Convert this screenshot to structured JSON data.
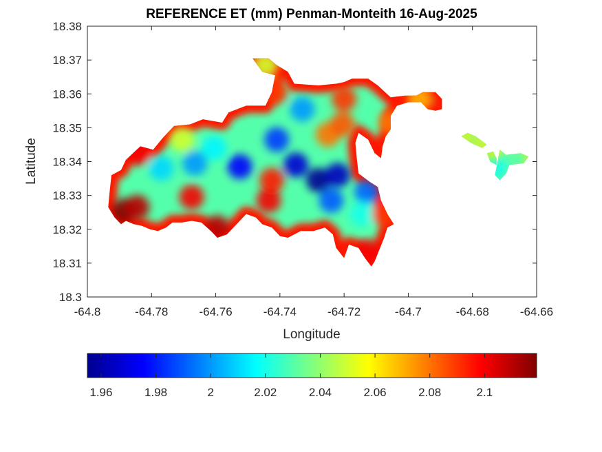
{
  "chart_data": {
    "type": "heatmap",
    "title": "REFERENCE ET (mm) Penman-Monteith 16-Aug-2025",
    "xlabel": "Longitude",
    "ylabel": "Latitude",
    "xlim": [
      -64.8,
      -64.66
    ],
    "ylim": [
      18.3,
      18.38
    ],
    "xticks": [
      -64.8,
      -64.78,
      -64.76,
      -64.74,
      -64.72,
      -64.7,
      -64.68,
      -64.66
    ],
    "xtick_labels": [
      "-64.8",
      "-64.78",
      "-64.76",
      "-64.74",
      "-64.72",
      "-64.7",
      "-64.68",
      "-64.66"
    ],
    "yticks": [
      18.3,
      18.31,
      18.32,
      18.33,
      18.34,
      18.35,
      18.36,
      18.37,
      18.38
    ],
    "ytick_labels": [
      "18.3",
      "18.31",
      "18.32",
      "18.33",
      "18.34",
      "18.35",
      "18.36",
      "18.37",
      "18.38"
    ],
    "colormap": "jet",
    "colorbar": {
      "orientation": "horizontal",
      "location": "below",
      "range": [
        1.955,
        2.119
      ],
      "ticks": [
        1.96,
        1.98,
        2.0,
        2.02,
        2.04,
        2.06,
        2.08,
        2.1
      ],
      "tick_labels": [
        "1.96",
        "1.98",
        "2",
        "2.02",
        "2.04",
        "2.06",
        "2.08",
        "2.1"
      ]
    },
    "grid": false,
    "region_outline": [
      [
        -64.7915,
        18.3235
      ],
      [
        -64.7935,
        18.3265
      ],
      [
        -64.793,
        18.3315
      ],
      [
        -64.7925,
        18.336
      ],
      [
        -64.7895,
        18.3375
      ],
      [
        -64.788,
        18.3405
      ],
      [
        -64.7835,
        18.3445
      ],
      [
        -64.7795,
        18.3435
      ],
      [
        -64.7765,
        18.347
      ],
      [
        -64.773,
        18.3505
      ],
      [
        -64.768,
        18.351
      ],
      [
        -64.764,
        18.3525
      ],
      [
        -64.758,
        18.3515
      ],
      [
        -64.756,
        18.3545
      ],
      [
        -64.7505,
        18.3565
      ],
      [
        -64.7445,
        18.3565
      ],
      [
        -64.7425,
        18.3605
      ],
      [
        -64.7415,
        18.3655
      ],
      [
        -64.7455,
        18.3665
      ],
      [
        -64.7485,
        18.3705
      ],
      [
        -64.7435,
        18.3705
      ],
      [
        -64.741,
        18.3685
      ],
      [
        -64.7375,
        18.3665
      ],
      [
        -64.7355,
        18.363
      ],
      [
        -64.728,
        18.3625
      ],
      [
        -64.7225,
        18.363
      ],
      [
        -64.72,
        18.3635
      ],
      [
        -64.7175,
        18.3645
      ],
      [
        -64.7125,
        18.3645
      ],
      [
        -64.7095,
        18.3625
      ],
      [
        -64.7055,
        18.359
      ],
      [
        -64.701,
        18.3595
      ],
      [
        -64.6975,
        18.3595
      ],
      [
        -64.6955,
        18.3605
      ],
      [
        -64.6915,
        18.3605
      ],
      [
        -64.6895,
        18.3585
      ],
      [
        -64.6895,
        18.3555
      ],
      [
        -64.6915,
        18.355
      ],
      [
        -64.694,
        18.3555
      ],
      [
        -64.696,
        18.3575
      ],
      [
        -64.7,
        18.3575
      ],
      [
        -64.7035,
        18.3565
      ],
      [
        -64.7055,
        18.3535
      ],
      [
        -64.7055,
        18.3495
      ],
      [
        -64.707,
        18.3475
      ],
      [
        -64.708,
        18.3445
      ],
      [
        -64.7085,
        18.341
      ],
      [
        -64.7105,
        18.3425
      ],
      [
        -64.7125,
        18.3465
      ],
      [
        -64.7155,
        18.3485
      ],
      [
        -64.7165,
        18.3455
      ],
      [
        -64.716,
        18.3405
      ],
      [
        -64.7155,
        18.3365
      ],
      [
        -64.712,
        18.334
      ],
      [
        -64.7095,
        18.3325
      ],
      [
        -64.7085,
        18.3285
      ],
      [
        -64.7065,
        18.3245
      ],
      [
        -64.7045,
        18.3215
      ],
      [
        -64.7065,
        18.3205
      ],
      [
        -64.7075,
        18.3175
      ],
      [
        -64.709,
        18.314
      ],
      [
        -64.7105,
        18.3105
      ],
      [
        -64.7115,
        18.309
      ],
      [
        -64.7135,
        18.3115
      ],
      [
        -64.7155,
        18.3145
      ],
      [
        -64.7185,
        18.3155
      ],
      [
        -64.72,
        18.3115
      ],
      [
        -64.7225,
        18.3145
      ],
      [
        -64.7235,
        18.3185
      ],
      [
        -64.726,
        18.3205
      ],
      [
        -64.7295,
        18.3195
      ],
      [
        -64.7335,
        18.3195
      ],
      [
        -64.7375,
        18.3175
      ],
      [
        -64.74,
        18.318
      ],
      [
        -64.7425,
        18.3205
      ],
      [
        -64.7455,
        18.3215
      ],
      [
        -64.7475,
        18.3235
      ],
      [
        -64.7505,
        18.3245
      ],
      [
        -64.7535,
        18.3215
      ],
      [
        -64.7565,
        18.3185
      ],
      [
        -64.7595,
        18.3175
      ],
      [
        -64.7615,
        18.3195
      ],
      [
        -64.7645,
        18.322
      ],
      [
        -64.7675,
        18.3225
      ],
      [
        -64.7705,
        18.322
      ],
      [
        -64.7735,
        18.322
      ],
      [
        -64.7755,
        18.3205
      ],
      [
        -64.778,
        18.3195
      ],
      [
        -64.7805,
        18.32
      ],
      [
        -64.783,
        18.321
      ],
      [
        -64.7855,
        18.3215
      ],
      [
        -64.788,
        18.3225
      ],
      [
        -64.7895,
        18.3215
      ]
    ],
    "islands": [
      [
        [
          -64.6725,
          18.341
        ],
        [
          -64.6735,
          18.343
        ],
        [
          -64.6755,
          18.3425
        ],
        [
          -64.6745,
          18.34
        ],
        [
          -64.6725,
          18.339
        ]
      ],
      [
        [
          -64.6715,
          18.3435
        ],
        [
          -64.6695,
          18.342
        ],
        [
          -64.665,
          18.3425
        ],
        [
          -64.6625,
          18.3415
        ],
        [
          -64.664,
          18.3395
        ],
        [
          -64.6685,
          18.339
        ],
        [
          -64.6695,
          18.3365
        ],
        [
          -64.6715,
          18.3345
        ],
        [
          -64.673,
          18.336
        ]
      ],
      [
        [
          -64.6755,
          18.345
        ],
        [
          -64.679,
          18.3475
        ],
        [
          -64.6815,
          18.3485
        ],
        [
          -64.6835,
          18.3475
        ],
        [
          -64.6805,
          18.3455
        ],
        [
          -64.677,
          18.344
        ]
      ]
    ],
    "field_notes": "Values range 1.955-2.119 mm. Low (blue) core near lon -64.728, lat 18.334; high (dark red) west end near lon -64.789, lat 18.325; high (red) fringe around edges, red streaks near lon -64.743 and lon -64.72, orange lobe near lon -64.725, lat 18.348.",
    "field_points": [
      {
        "lon": -64.728,
        "lat": 18.3345,
        "v": 1.958
      },
      {
        "lon": -64.722,
        "lat": 18.336,
        "v": 1.965
      },
      {
        "lon": -64.735,
        "lat": 18.339,
        "v": 1.968
      },
      {
        "lon": -64.7525,
        "lat": 18.3385,
        "v": 1.975
      },
      {
        "lon": -64.724,
        "lat": 18.3285,
        "v": 1.99
      },
      {
        "lon": -64.741,
        "lat": 18.3465,
        "v": 1.985
      },
      {
        "lon": -64.713,
        "lat": 18.331,
        "v": 1.992
      },
      {
        "lon": -64.733,
        "lat": 18.3555,
        "v": 2.0
      },
      {
        "lon": -64.7665,
        "lat": 18.3395,
        "v": 2.0
      },
      {
        "lon": -64.777,
        "lat": 18.338,
        "v": 2.01
      },
      {
        "lon": -64.7605,
        "lat": 18.344,
        "v": 2.015
      },
      {
        "lon": -64.7145,
        "lat": 18.3245,
        "v": 2.02
      },
      {
        "lon": -64.7435,
        "lat": 18.3285,
        "v": 2.1
      },
      {
        "lon": -64.7425,
        "lat": 18.3345,
        "v": 2.095
      },
      {
        "lon": -64.725,
        "lat": 18.348,
        "v": 2.08
      },
      {
        "lon": -64.7205,
        "lat": 18.351,
        "v": 2.085
      },
      {
        "lon": -64.72,
        "lat": 18.3585,
        "v": 2.09
      },
      {
        "lon": -64.7885,
        "lat": 18.3255,
        "v": 2.119
      },
      {
        "lon": -64.7845,
        "lat": 18.3265,
        "v": 2.11
      },
      {
        "lon": -64.784,
        "lat": 18.3425,
        "v": 2.1
      },
      {
        "lon": -64.7595,
        "lat": 18.3205,
        "v": 2.11
      },
      {
        "lon": -64.7675,
        "lat": 18.3295,
        "v": 2.1
      },
      {
        "lon": -64.7415,
        "lat": 18.3605,
        "v": 2.09
      },
      {
        "lon": -64.7075,
        "lat": 18.3245,
        "v": 2.09
      },
      {
        "lon": -64.7125,
        "lat": 18.3135,
        "v": 2.1
      },
      {
        "lon": -64.6965,
        "lat": 18.3585,
        "v": 2.07
      },
      {
        "lon": -64.7055,
        "lat": 18.3515,
        "v": 2.08
      },
      {
        "lon": -64.6675,
        "lat": 18.3405,
        "v": 2.03
      },
      {
        "lon": -64.6725,
        "lat": 18.3375,
        "v": 2.02
      },
      {
        "lon": -64.7445,
        "lat": 18.3685,
        "v": 2.05
      },
      {
        "lon": -64.7705,
        "lat": 18.3465,
        "v": 2.05
      }
    ]
  }
}
